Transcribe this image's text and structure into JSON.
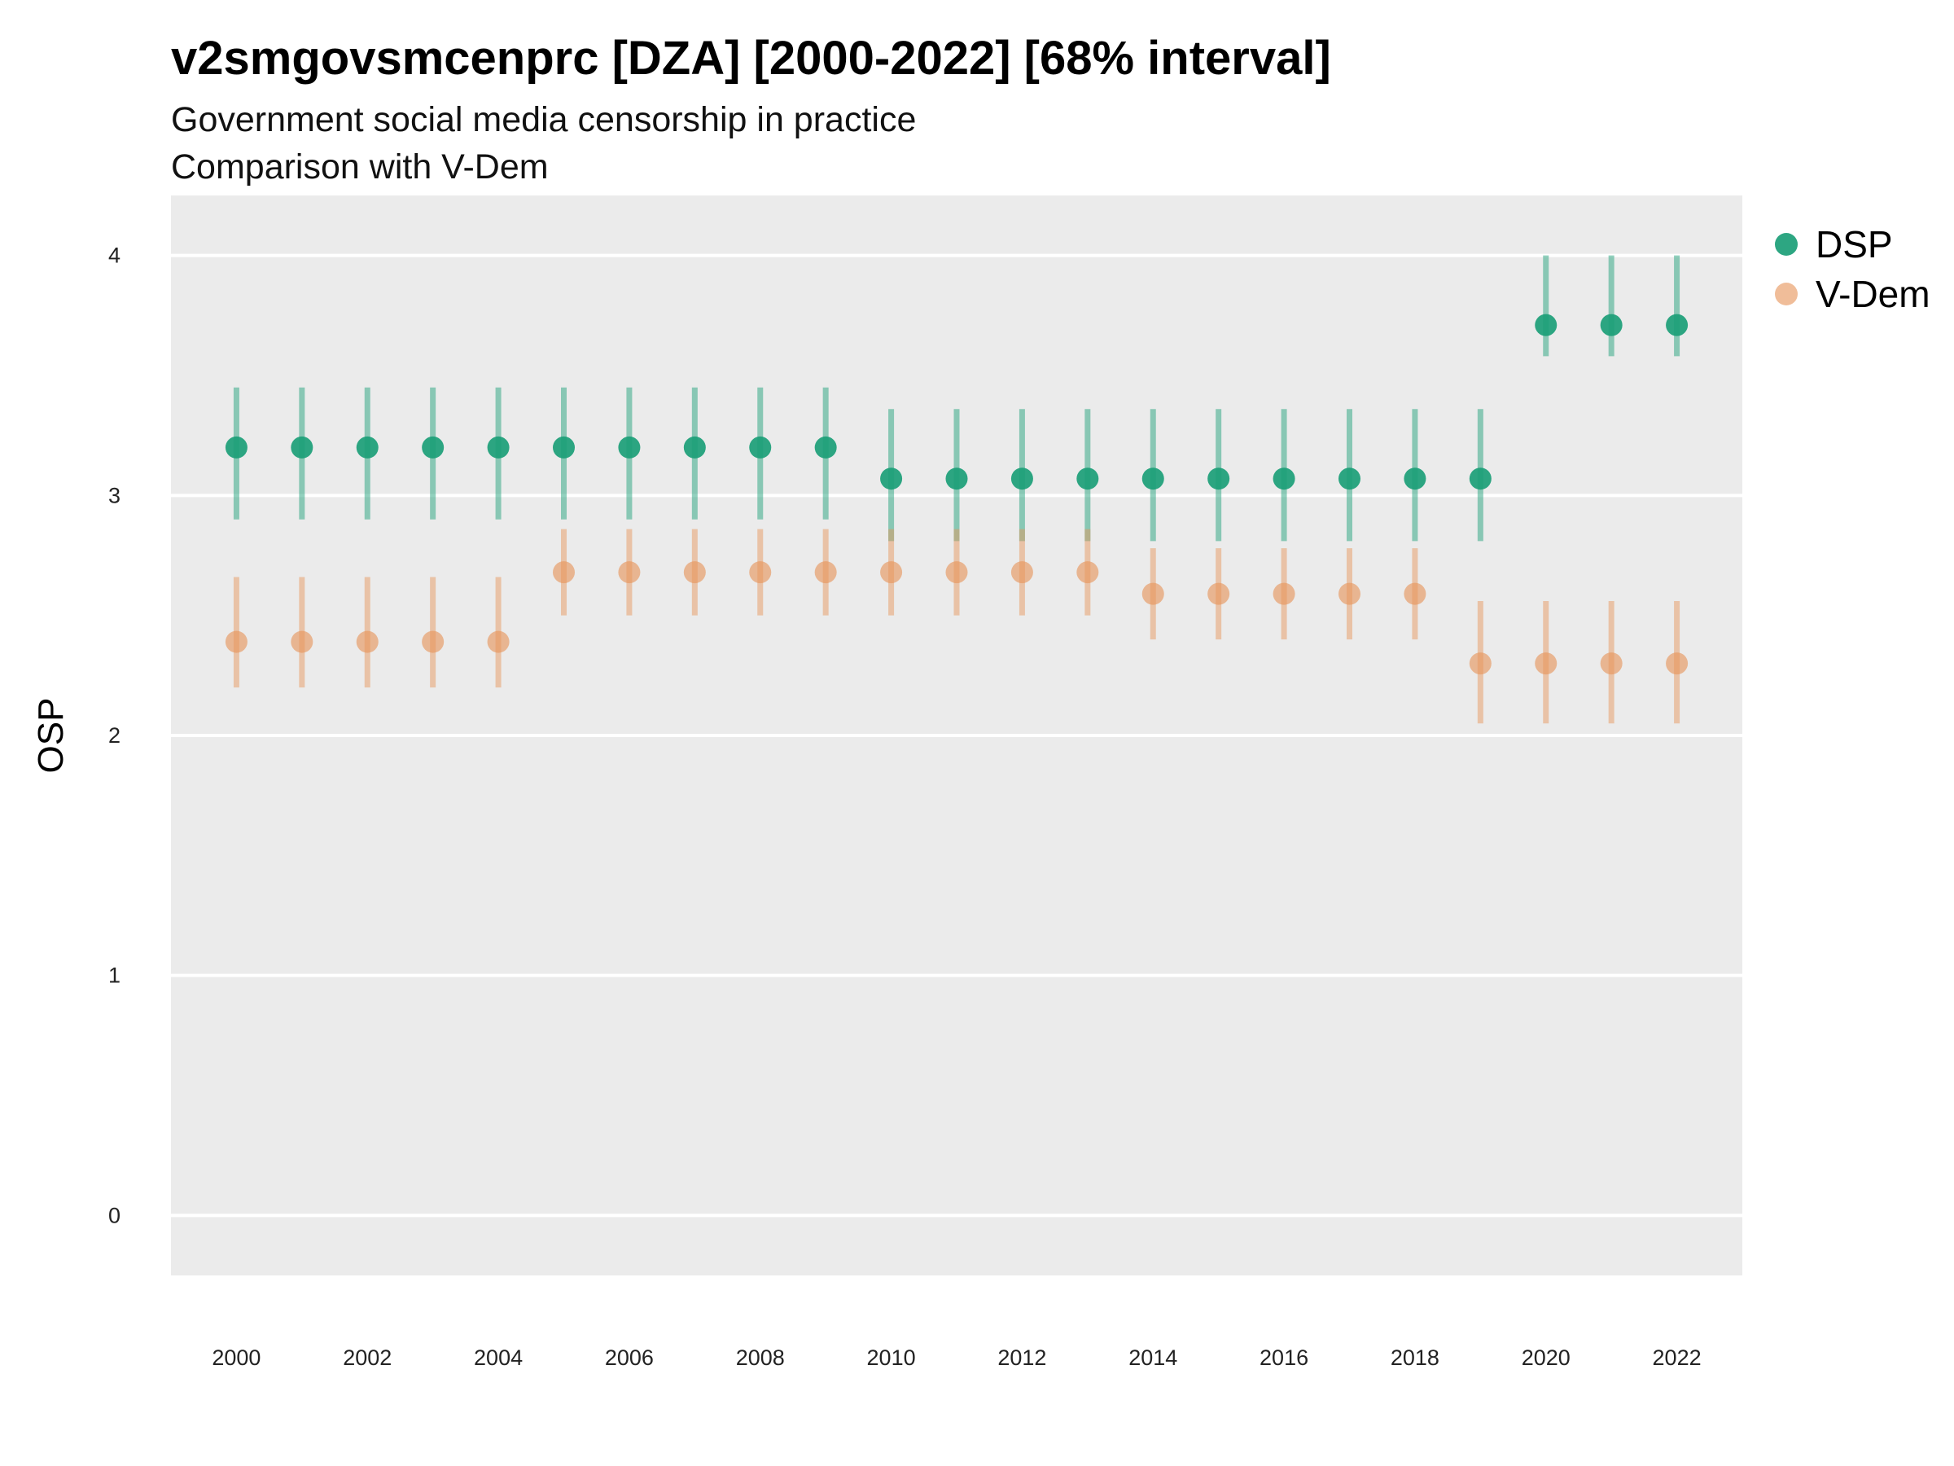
{
  "chart_data": {
    "type": "scatter",
    "title": "v2smgovsmcenprc [DZA] [2000-2022] [68% interval]",
    "subtitle_lines": [
      "Government social media censorship in practice",
      "Comparison with V-Dem"
    ],
    "xlabel": "",
    "ylabel": "OSP",
    "xlim": [
      1999,
      2023
    ],
    "ylim": [
      -0.25,
      4.25
    ],
    "y_ticks": [
      0,
      1,
      2,
      3,
      4
    ],
    "x_ticks": [
      2000,
      2002,
      2004,
      2006,
      2008,
      2010,
      2012,
      2014,
      2016,
      2018,
      2020,
      2022
    ],
    "grid": true,
    "legend_position": "right",
    "x": [
      2000,
      2001,
      2002,
      2003,
      2004,
      2005,
      2006,
      2007,
      2008,
      2009,
      2010,
      2011,
      2012,
      2013,
      2014,
      2015,
      2016,
      2017,
      2018,
      2019,
      2020,
      2021,
      2022
    ],
    "series": [
      {
        "name": "DSP",
        "color": "#1b9e77",
        "values": [
          3.2,
          3.2,
          3.2,
          3.2,
          3.2,
          3.2,
          3.2,
          3.2,
          3.2,
          3.2,
          3.07,
          3.07,
          3.07,
          3.07,
          3.07,
          3.07,
          3.07,
          3.07,
          3.07,
          3.07,
          3.71,
          3.71,
          3.71
        ],
        "lower": [
          2.9,
          2.9,
          2.9,
          2.9,
          2.9,
          2.9,
          2.9,
          2.9,
          2.9,
          2.9,
          2.81,
          2.81,
          2.81,
          2.81,
          2.81,
          2.81,
          2.81,
          2.81,
          2.81,
          2.81,
          3.58,
          3.58,
          3.58
        ],
        "upper": [
          3.45,
          3.45,
          3.45,
          3.45,
          3.45,
          3.45,
          3.45,
          3.45,
          3.45,
          3.45,
          3.36,
          3.36,
          3.36,
          3.36,
          3.36,
          3.36,
          3.36,
          3.36,
          3.36,
          3.36,
          4.0,
          4.0,
          4.0
        ]
      },
      {
        "name": "V-Dem",
        "color": "#e6955a",
        "values": [
          2.39,
          2.39,
          2.39,
          2.39,
          2.39,
          2.68,
          2.68,
          2.68,
          2.68,
          2.68,
          2.68,
          2.68,
          2.68,
          2.68,
          2.59,
          2.59,
          2.59,
          2.59,
          2.59,
          2.3,
          2.3,
          2.3,
          2.3
        ],
        "lower": [
          2.2,
          2.2,
          2.2,
          2.2,
          2.2,
          2.5,
          2.5,
          2.5,
          2.5,
          2.5,
          2.5,
          2.5,
          2.5,
          2.5,
          2.4,
          2.4,
          2.4,
          2.4,
          2.4,
          2.05,
          2.05,
          2.05,
          2.05
        ],
        "upper": [
          2.66,
          2.66,
          2.66,
          2.66,
          2.66,
          2.86,
          2.86,
          2.86,
          2.86,
          2.86,
          2.86,
          2.86,
          2.86,
          2.86,
          2.78,
          2.78,
          2.78,
          2.78,
          2.78,
          2.56,
          2.56,
          2.56,
          2.56
        ]
      }
    ]
  }
}
